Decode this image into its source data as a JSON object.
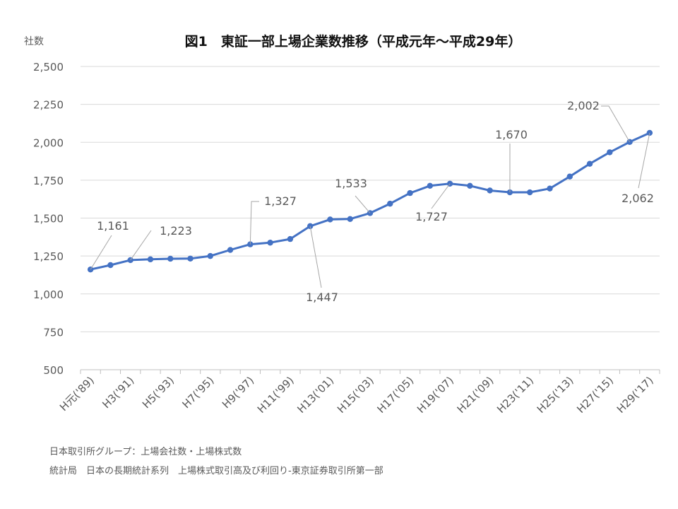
{
  "chart_data": {
    "type": "line",
    "title": "図1　東証一部上場企業数推移（平成元年～平成29年）",
    "ylabel": "社数",
    "ylim": [
      500,
      2500
    ],
    "yticks": [
      500,
      750,
      1000,
      1250,
      1500,
      1750,
      2000,
      2250,
      2500
    ],
    "ytick_labels": [
      "500",
      "750",
      "1,000",
      "1,250",
      "1,500",
      "1,750",
      "2,000",
      "2,250",
      "2,500"
    ],
    "grid": true,
    "x_tick_labels": [
      "H元('89)",
      "H3('91)",
      "H5('93)",
      "H7('95)",
      "H9('97)",
      "H11('99)",
      "H13('01)",
      "H15('03)",
      "H17('05)",
      "H19('07)",
      "H21('09)",
      "H23('11)",
      "H25('13)",
      "H27('15)",
      "H29('17)"
    ],
    "series_color": "#4472C4",
    "series": [
      {
        "values": [
          1161,
          1190,
          1223,
          1228,
          1232,
          1233,
          1250,
          1290,
          1327,
          1338,
          1362,
          1447,
          1491,
          1494,
          1533,
          1595,
          1665,
          1713,
          1727,
          1713,
          1682,
          1670,
          1670,
          1695,
          1774,
          1858,
          1934,
          2002,
          2062
        ]
      }
    ],
    "annotations": [
      {
        "index": 0,
        "text": "1,161"
      },
      {
        "index": 2,
        "text": "1,223"
      },
      {
        "index": 8,
        "text": "1,327"
      },
      {
        "index": 11,
        "text": "1,447"
      },
      {
        "index": 14,
        "text": "1,533"
      },
      {
        "index": 18,
        "text": "1,727"
      },
      {
        "index": 21,
        "text": "1,670"
      },
      {
        "index": 27,
        "text": "2,002"
      },
      {
        "index": 28,
        "text": "2,062"
      }
    ]
  },
  "notes": [
    "日本取引所グループ：上場会社数・上場株式数",
    "統計局　日本の長期統計系列　上場株式取引高及び利回り-東京証券取引所第一部"
  ]
}
